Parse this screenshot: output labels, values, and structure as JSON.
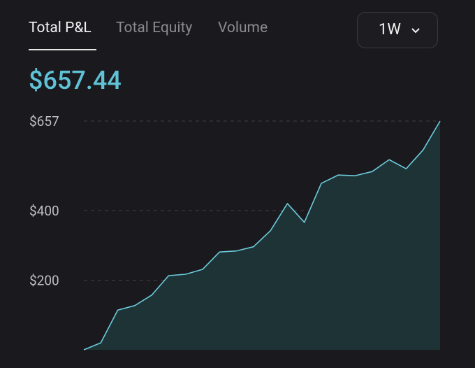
{
  "header": {
    "tabs": [
      "Total P&L",
      "Total Equity",
      "Volume"
    ],
    "period": "1W",
    "balance": "$657.44"
  },
  "chart_data": {
    "type": "area",
    "categories": [
      null,
      null,
      null,
      null,
      null,
      null,
      null,
      null,
      null,
      null,
      null,
      null,
      null,
      null,
      null,
      null,
      null,
      null,
      null,
      null,
      null,
      null
    ],
    "values": [
      0,
      20,
      114,
      127,
      157,
      213,
      217,
      231,
      281,
      284,
      296,
      342,
      420,
      366,
      478,
      502,
      500,
      512,
      546,
      520,
      574,
      657
    ],
    "color": "#6ccbdc",
    "fill": "#1e3336",
    "ylim": [
      0,
      657
    ],
    "yticks": [
      {
        "value": 200,
        "label": "$200"
      },
      {
        "value": 400,
        "label": "$400"
      },
      {
        "value": 657,
        "label": "$657"
      }
    ],
    "grid": true
  }
}
